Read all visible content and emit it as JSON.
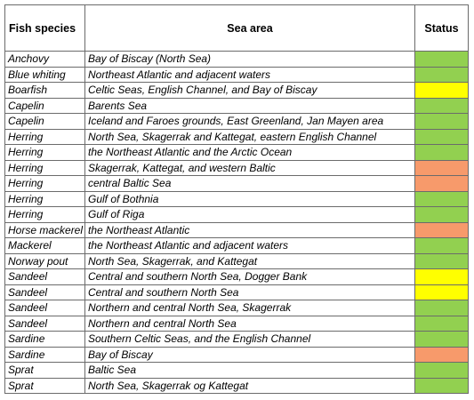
{
  "headers": {
    "species": "Fish species",
    "area": "Sea area",
    "status": "Status"
  },
  "status_colors": {
    "green": "#92d050",
    "yellow": "#ffff00",
    "orange": "#f79a6b"
  },
  "rows": [
    {
      "species": "Anchovy",
      "area": "Bay of Biscay (North Sea)",
      "status": "green"
    },
    {
      "species": "Blue whiting",
      "area": "Northeast Atlantic and adjacent waters",
      "status": "green"
    },
    {
      "species": "Boarfish",
      "area": "Celtic Seas, English Channel, and Bay of Biscay",
      "status": "yellow"
    },
    {
      "species": "Capelin",
      "area": "Barents Sea",
      "status": "green"
    },
    {
      "species": "Capelin",
      "area": "Iceland and Faroes grounds, East Greenland, Jan Mayen area",
      "status": "green"
    },
    {
      "species": "Herring",
      "area": "North Sea, Skagerrak and Kattegat, eastern English Channel",
      "status": "green"
    },
    {
      "species": "Herring",
      "area": "the Northeast Atlantic and the Arctic Ocean",
      "status": "green"
    },
    {
      "species": "Herring",
      "area": "Skagerrak, Kattegat, and western Baltic",
      "status": "orange"
    },
    {
      "species": "Herring",
      "area": "central Baltic Sea",
      "status": "orange"
    },
    {
      "species": "Herring",
      "area": "Gulf of Bothnia",
      "status": "green"
    },
    {
      "species": "Herring",
      "area": "Gulf of Riga",
      "status": "green"
    },
    {
      "species": "Horse mackerel",
      "area": "the  Northeast Atlantic",
      "status": "orange"
    },
    {
      "species": "Mackerel",
      "area": "the  Northeast  Atlantic  and  adjacent waters",
      "status": "green"
    },
    {
      "species": "Norway pout",
      "area": "North Sea, Skagerrak, and Kattegat",
      "status": "green"
    },
    {
      "species": "Sandeel",
      "area": "Central  and  southern  North  Sea,  Dogger Bank",
      "status": "yellow"
    },
    {
      "species": "Sandeel",
      "area": "Central  and  southern North Sea",
      "status": "yellow"
    },
    {
      "species": "Sandeel",
      "area": "Northern  and  central North Sea, Skagerrak",
      "status": "green"
    },
    {
      "species": "Sandeel",
      "area": "Northern and central North Sea",
      "status": "green"
    },
    {
      "species": "Sardine",
      "area": "Southern Celtic Seas, and the English Channel",
      "status": "green"
    },
    {
      "species": "Sardine",
      "area": "Bay of Biscay",
      "status": "orange"
    },
    {
      "species": "Sprat",
      "area": "Baltic Sea",
      "status": "green"
    },
    {
      "species": "Sprat",
      "area": " North Sea, Skagerrak og Kattegat",
      "status": "green"
    }
  ]
}
